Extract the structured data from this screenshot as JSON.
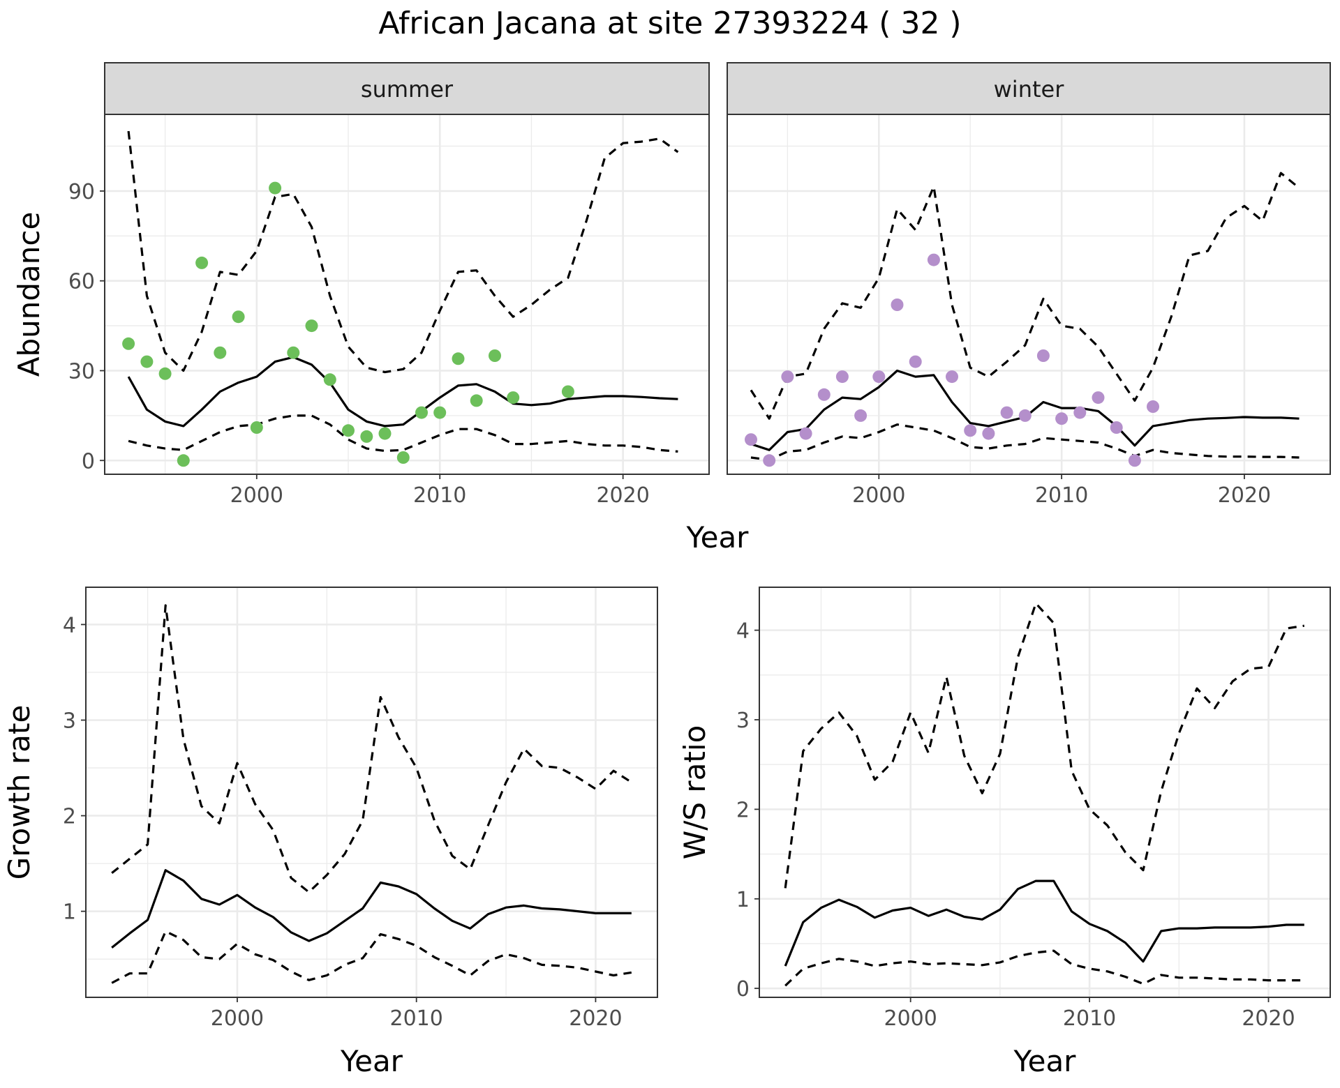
{
  "title": "African Jacana at site 27393224 ( 32 )",
  "colors": {
    "summer_points": "#6cbf5a",
    "winter_points": "#b48fcb",
    "line": "#000000",
    "strip_fill": "#d9d9d9",
    "grid_major": "#ebebeb"
  },
  "chart_data": [
    {
      "id": "abundance",
      "type": "line",
      "facets": [
        "summer",
        "winter"
      ],
      "xlabel": "Year",
      "ylabel": "Abundance",
      "xlim": [
        1991.7,
        2024.7
      ],
      "ylim": [
        -4.6,
        115.6
      ],
      "xticks": [
        2000,
        2010,
        2020
      ],
      "yticks": [
        0,
        30,
        60,
        90
      ],
      "grid": true,
      "panels": [
        {
          "strip": "summer",
          "point_color": "#6cbf5a",
          "points": {
            "x": [
              1993,
              1994,
              1995,
              1996,
              1997,
              1998,
              1999,
              2000,
              2001,
              2002,
              2003,
              2004,
              2005,
              2006,
              2007,
              2008,
              2009,
              2010,
              2011,
              2012,
              2013,
              2014,
              2017
            ],
            "y": [
              39,
              33,
              29,
              0,
              66,
              36,
              48,
              11,
              91,
              36,
              45,
              27,
              10,
              8,
              9,
              1,
              16,
              16,
              34,
              20,
              35,
              21,
              23
            ]
          },
          "mean": {
            "x": [
              1993,
              1994,
              1995,
              1996,
              1997,
              1998,
              1999,
              2000,
              2001,
              2002,
              2003,
              2004,
              2005,
              2006,
              2007,
              2008,
              2009,
              2010,
              2011,
              2012,
              2013,
              2014,
              2015,
              2016,
              2017,
              2018,
              2019,
              2020,
              2021,
              2022,
              2023
            ],
            "y": [
              28,
              17,
              13,
              11.5,
              17,
              23,
              26,
              28,
              33,
              34.5,
              32,
              26,
              17,
              13,
              11.5,
              12,
              16.5,
              21,
              25,
              25.5,
              23,
              19,
              18.5,
              19,
              20.5,
              21,
              21.5,
              21.5,
              21.2,
              20.8,
              20.5
            ]
          },
          "lower": {
            "x": [
              1993,
              1994,
              1995,
              1996,
              1997,
              1998,
              1999,
              2000,
              2001,
              2002,
              2003,
              2004,
              2005,
              2006,
              2007,
              2008,
              2009,
              2010,
              2011,
              2012,
              2013,
              2014,
              2015,
              2016,
              2017,
              2018,
              2019,
              2020,
              2021,
              2022,
              2023
            ],
            "y": [
              6.5,
              5,
              4,
              3.5,
              6.5,
              9.5,
              11.5,
              12,
              14,
              15,
              15,
              12,
              7,
              4,
              3.2,
              3.5,
              6,
              8.5,
              10.5,
              10.5,
              8.5,
              5.5,
              5.5,
              6,
              6.5,
              5.5,
              5,
              5,
              4.5,
              3.5,
              3
            ]
          },
          "upper": {
            "x": [
              1993,
              1994,
              1995,
              1996,
              1997,
              1998,
              1999,
              2000,
              2001,
              2002,
              2003,
              2004,
              2005,
              2006,
              2007,
              2008,
              2009,
              2010,
              2011,
              2012,
              2013,
              2014,
              2015,
              2016,
              2017,
              2018,
              2019,
              2020,
              2021,
              2022,
              2023
            ],
            "y": [
              110,
              55,
              36,
              30,
              43,
              63,
              62,
              70,
              88,
              89,
              78,
              55,
              38,
              31,
              29.5,
              30.5,
              36,
              50,
              63,
              63.5,
              55,
              48,
              52,
              57,
              61,
              80,
              101,
              106,
              106.5,
              107.5,
              103
            ]
          }
        },
        {
          "strip": "winter",
          "point_color": "#b48fcb",
          "points": {
            "x": [
              1993,
              1994,
              1995,
              1996,
              1997,
              1998,
              1999,
              2000,
              2001,
              2002,
              2003,
              2004,
              2005,
              2006,
              2007,
              2008,
              2009,
              2010,
              2011,
              2012,
              2013,
              2014,
              2015
            ],
            "y": [
              7,
              0,
              28,
              9,
              22,
              28,
              15,
              28,
              52,
              33,
              67,
              28,
              10,
              9,
              16,
              15,
              35,
              14,
              16,
              21,
              11,
              0,
              18
            ]
          },
          "mean": {
            "x": [
              1993,
              1994,
              1995,
              1996,
              1997,
              1998,
              1999,
              2000,
              2001,
              2002,
              2003,
              2004,
              2005,
              2006,
              2007,
              2008,
              2009,
              2010,
              2011,
              2012,
              2013,
              2014,
              2015,
              2016,
              2017,
              2018,
              2019,
              2020,
              2021,
              2022,
              2023
            ],
            "y": [
              5.5,
              3.5,
              9.5,
              10.5,
              17,
              21,
              20.5,
              24.5,
              30,
              28,
              28.5,
              19.5,
              12.5,
              11.5,
              13,
              14.5,
              19.5,
              17.5,
              17.5,
              16.5,
              11.5,
              5,
              11.5,
              12.5,
              13.5,
              14,
              14.2,
              14.5,
              14.3,
              14.3,
              14
            ]
          },
          "lower": {
            "x": [
              1993,
              1994,
              1995,
              1996,
              1997,
              1998,
              1999,
              2000,
              2001,
              2002,
              2003,
              2004,
              2005,
              2006,
              2007,
              2008,
              2009,
              2010,
              2011,
              2012,
              2013,
              2014,
              2015,
              2016,
              2017,
              2018,
              2019,
              2020,
              2021,
              2022,
              2023
            ],
            "y": [
              1,
              0.2,
              3,
              3.5,
              6,
              8,
              7.5,
              9.5,
              12,
              11,
              10,
              7.5,
              4.5,
              4,
              5,
              5.5,
              7.5,
              7,
              6.5,
              6,
              4,
              1.5,
              3.5,
              2.5,
              2,
              1.5,
              1.3,
              1.3,
              1.2,
              1.2,
              1
            ]
          },
          "upper": {
            "x": [
              1993,
              1994,
              1995,
              1996,
              1997,
              1998,
              1999,
              2000,
              2001,
              2002,
              2003,
              2004,
              2005,
              2006,
              2007,
              2008,
              2009,
              2010,
              2011,
              2012,
              2013,
              2014,
              2015,
              2016,
              2017,
              2018,
              2019,
              2020,
              2021,
              2022,
              2023
            ],
            "y": [
              23.5,
              14,
              28,
              29,
              44,
              52.5,
              51,
              61,
              84,
              77,
              91.5,
              52,
              31,
              28,
              33,
              38.5,
              54,
              45,
              44,
              38,
              29,
              20,
              31,
              48,
              68.5,
              70,
              81,
              85,
              80,
              96,
              91
            ]
          }
        }
      ]
    },
    {
      "id": "growth",
      "type": "line",
      "xlabel": "Year",
      "ylabel": "Growth rate",
      "xlim": [
        1991.55,
        2023.45
      ],
      "ylim": [
        0.1,
        4.39
      ],
      "xticks": [
        2000,
        2010,
        2020
      ],
      "yticks": [
        1,
        2,
        3,
        4
      ],
      "grid": true,
      "mean": {
        "x": [
          1993,
          1994,
          1995,
          1996,
          1997,
          1998,
          1999,
          2000,
          2001,
          2002,
          2003,
          2004,
          2005,
          2006,
          2007,
          2008,
          2009,
          2010,
          2011,
          2012,
          2013,
          2014,
          2015,
          2016,
          2017,
          2018,
          2019,
          2020,
          2021,
          2022
        ],
        "y": [
          0.62,
          0.77,
          0.91,
          1.43,
          1.32,
          1.13,
          1.07,
          1.17,
          1.04,
          0.94,
          0.78,
          0.69,
          0.77,
          0.9,
          1.03,
          1.3,
          1.26,
          1.18,
          1.03,
          0.9,
          0.82,
          0.97,
          1.04,
          1.06,
          1.03,
          1.02,
          1.0,
          0.98,
          0.98,
          0.98
        ]
      },
      "lower": {
        "x": [
          1993,
          1994,
          1995,
          1996,
          1997,
          1998,
          1999,
          2000,
          2001,
          2002,
          2003,
          2004,
          2005,
          2006,
          2007,
          2008,
          2009,
          2010,
          2011,
          2012,
          2013,
          2014,
          2015,
          2016,
          2017,
          2018,
          2019,
          2020,
          2021,
          2022
        ],
        "y": [
          0.25,
          0.35,
          0.35,
          0.79,
          0.7,
          0.52,
          0.5,
          0.66,
          0.55,
          0.49,
          0.37,
          0.28,
          0.33,
          0.44,
          0.51,
          0.76,
          0.71,
          0.64,
          0.52,
          0.43,
          0.33,
          0.48,
          0.55,
          0.51,
          0.44,
          0.43,
          0.41,
          0.37,
          0.33,
          0.36
        ]
      },
      "upper": {
        "x": [
          1993,
          1994,
          1995,
          1996,
          1997,
          1998,
          1999,
          2000,
          2001,
          2002,
          2003,
          2004,
          2005,
          2006,
          2007,
          2008,
          2009,
          2010,
          2011,
          2012,
          2013,
          2014,
          2015,
          2016,
          2017,
          2018,
          2019,
          2020,
          2021,
          2022
        ],
        "y": [
          1.4,
          1.55,
          1.7,
          4.2,
          2.8,
          2.1,
          1.92,
          2.55,
          2.12,
          1.85,
          1.35,
          1.2,
          1.38,
          1.6,
          1.95,
          3.24,
          2.82,
          2.5,
          1.95,
          1.58,
          1.44,
          1.9,
          2.35,
          2.7,
          2.52,
          2.5,
          2.4,
          2.28,
          2.47,
          2.35
        ]
      }
    },
    {
      "id": "ratio",
      "type": "line",
      "xlabel": "Year",
      "ylabel": "W/S ratio",
      "xlim": [
        1991.55,
        2023.45
      ],
      "ylim": [
        -0.1,
        4.48
      ],
      "xticks": [
        2000,
        2010,
        2020
      ],
      "yticks": [
        0,
        1,
        2,
        3,
        4
      ],
      "grid": true,
      "mean": {
        "x": [
          1993,
          1994,
          1995,
          1996,
          1997,
          1998,
          1999,
          2000,
          2001,
          2002,
          2003,
          2004,
          2005,
          2006,
          2007,
          2008,
          2009,
          2010,
          2011,
          2012,
          2013,
          2014,
          2015,
          2016,
          2017,
          2018,
          2019,
          2020,
          2021,
          2022
        ],
        "y": [
          0.25,
          0.74,
          0.9,
          0.99,
          0.91,
          0.79,
          0.87,
          0.9,
          0.81,
          0.88,
          0.8,
          0.77,
          0.88,
          1.11,
          1.2,
          1.2,
          0.86,
          0.72,
          0.64,
          0.51,
          0.3,
          0.64,
          0.67,
          0.67,
          0.68,
          0.68,
          0.68,
          0.69,
          0.71,
          0.71
        ]
      },
      "lower": {
        "x": [
          1993,
          1994,
          1995,
          1996,
          1997,
          1998,
          1999,
          2000,
          2001,
          2002,
          2003,
          2004,
          2005,
          2006,
          2007,
          2008,
          2009,
          2010,
          2011,
          2012,
          2013,
          2014,
          2015,
          2016,
          2017,
          2018,
          2019,
          2020,
          2021,
          2022
        ],
        "y": [
          0.03,
          0.22,
          0.28,
          0.33,
          0.3,
          0.25,
          0.28,
          0.3,
          0.27,
          0.28,
          0.27,
          0.26,
          0.29,
          0.36,
          0.4,
          0.42,
          0.27,
          0.22,
          0.19,
          0.13,
          0.05,
          0.15,
          0.12,
          0.12,
          0.11,
          0.1,
          0.1,
          0.09,
          0.09,
          0.09
        ]
      },
      "upper": {
        "x": [
          1993,
          1994,
          1995,
          1996,
          1997,
          1998,
          1999,
          2000,
          2001,
          2002,
          2003,
          2004,
          2005,
          2006,
          2007,
          2008,
          2009,
          2010,
          2011,
          2012,
          2013,
          2014,
          2015,
          2016,
          2017,
          2018,
          2019,
          2020,
          2021,
          2022
        ],
        "y": [
          1.12,
          2.65,
          2.9,
          3.08,
          2.82,
          2.33,
          2.53,
          3.08,
          2.63,
          3.48,
          2.6,
          2.18,
          2.62,
          3.7,
          4.3,
          4.08,
          2.43,
          2.0,
          1.82,
          1.52,
          1.32,
          2.2,
          2.85,
          3.35,
          3.13,
          3.43,
          3.57,
          3.59,
          4.02,
          4.05
        ]
      }
    }
  ]
}
